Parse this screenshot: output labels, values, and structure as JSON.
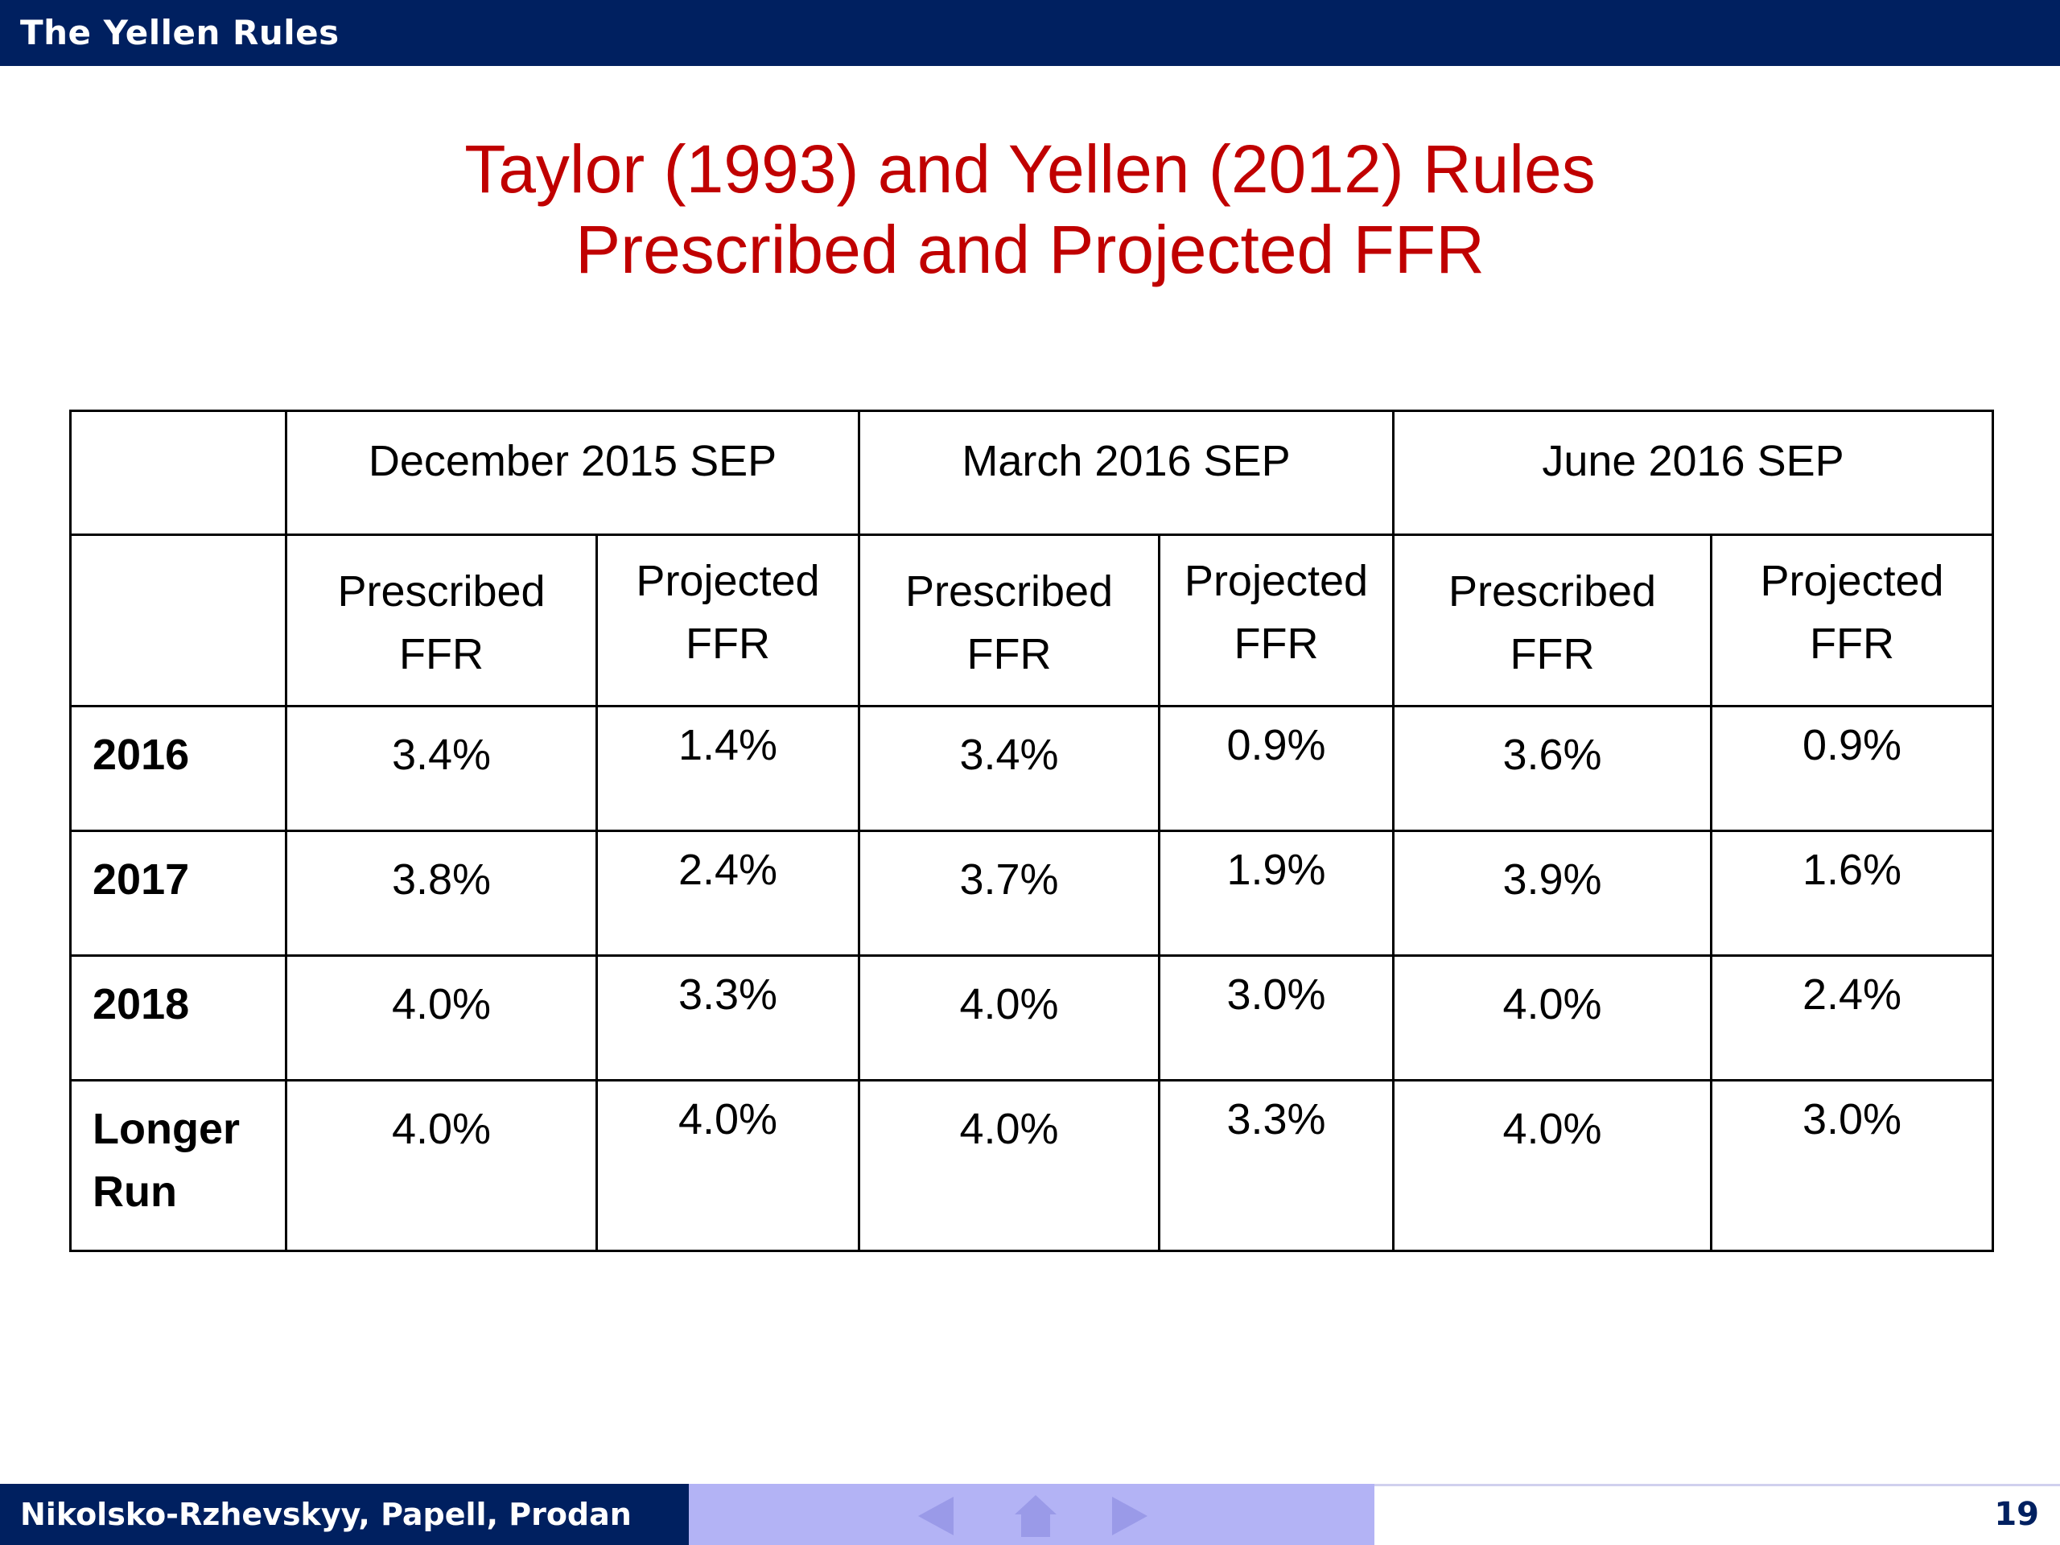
{
  "header": {
    "title": "The Yellen Rules"
  },
  "slide": {
    "title_line1": "Taylor (1993) and Yellen (2012) Rules",
    "title_line2": "Prescribed and Projected FFR"
  },
  "table": {
    "groups": [
      "December 2015 SEP",
      "March 2016 SEP",
      "June 2016 SEP"
    ],
    "subheaders": {
      "prescribed": [
        "Prescribed",
        "FFR"
      ],
      "projected": [
        "Projected",
        "FFR"
      ]
    },
    "rows": [
      {
        "label": [
          "2016"
        ],
        "values": [
          "3.4%",
          "1.4%",
          "3.4%",
          "0.9%",
          "3.6%",
          "0.9%"
        ]
      },
      {
        "label": [
          "2017"
        ],
        "values": [
          "3.8%",
          "2.4%",
          "3.7%",
          "1.9%",
          "3.9%",
          "1.6%"
        ]
      },
      {
        "label": [
          "2018"
        ],
        "values": [
          "4.0%",
          "3.3%",
          "4.0%",
          "3.0%",
          "4.0%",
          "2.4%"
        ]
      },
      {
        "label": [
          "Longer",
          "Run"
        ],
        "values": [
          "4.0%",
          "4.0%",
          "4.0%",
          "3.3%",
          "4.0%",
          "3.0%"
        ]
      }
    ]
  },
  "footer": {
    "authors": "Nikolsko-Rzhevskyy, Papell, Prodan",
    "page_number": "19",
    "nav_icons": [
      "arrow-left-icon",
      "home-icon",
      "arrow-right-icon"
    ],
    "colors": {
      "bar_dark": "#002060",
      "bar_light": "#b3b3f5",
      "nav_icon": "#9a9ae8"
    }
  },
  "colors": {
    "title_red": "#c00000",
    "header_navy": "#002060"
  }
}
